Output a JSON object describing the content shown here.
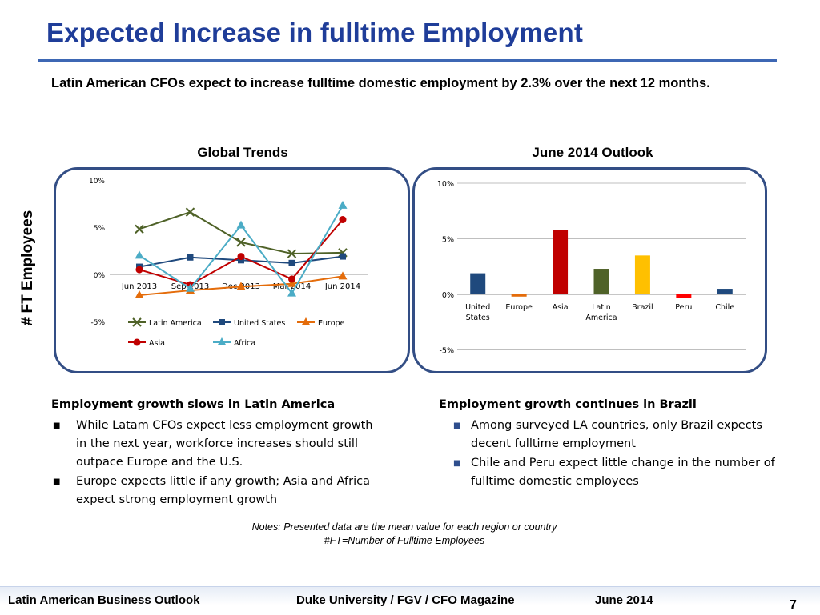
{
  "slide": {
    "title": "Expected Increase in fulltime Employment",
    "intro": "Latin American CFOs expect to increase fulltime domestic employment by 2.3% over the next 12 months.",
    "vertical_label": "# FT Employees",
    "left_panel_title": "Global Trends",
    "right_panel_title": "June 2014 Outlook"
  },
  "left_text": {
    "heading": "Employment growth slows in Latin America",
    "bullets": [
      "While Latam CFOs expect less employment growth in the next year, workforce increases should still outpace Europe and the U.S.",
      "Europe expects little if any growth; Asia and Africa expect strong employment growth"
    ]
  },
  "right_text": {
    "heading": "Employment growth continues in Brazil",
    "bullets": [
      "Among surveyed LA countries, only Brazil expects decent fulltime employment",
      "Chile and Peru expect little change in the number of fulltime domestic employees"
    ]
  },
  "notes": {
    "line1": "Notes: Presented data are the mean value for each region or country",
    "line2": "#FT=Number of Fulltime Employees"
  },
  "footer": {
    "left": "Latin American Business Outlook",
    "center": "Duke University / FGV / CFO Magazine",
    "date": "June 2014",
    "page": "7"
  },
  "chart_data": [
    {
      "type": "line",
      "title": "Global Trends",
      "ylabel": "# FT Employees",
      "x": [
        "Jun 2013",
        "Sep 2013",
        "Dec 2013",
        "Mar 2014",
        "Jun 2014"
      ],
      "yticks": [
        "10%",
        "5%",
        "0%",
        "-5%"
      ],
      "ylim": [
        -5,
        10
      ],
      "legend_position": "bottom",
      "series": [
        {
          "name": "Latin America",
          "values": [
            4.8,
            6.6,
            3.4,
            2.2,
            2.3
          ],
          "color": "#4f6228",
          "marker": "x"
        },
        {
          "name": "United States",
          "values": [
            0.8,
            1.8,
            1.5,
            1.2,
            1.9
          ],
          "color": "#1f497d",
          "marker": "square"
        },
        {
          "name": "Europe",
          "values": [
            -2.2,
            -1.7,
            -1.3,
            -1.0,
            -0.2
          ],
          "color": "#e46c0a",
          "marker": "triangle"
        },
        {
          "name": "Asia",
          "values": [
            0.5,
            -1.1,
            1.9,
            -0.5,
            5.8
          ],
          "color": "#c00000",
          "marker": "circle"
        },
        {
          "name": "Africa",
          "values": [
            2.0,
            -1.5,
            5.2,
            -2.0,
            7.3
          ],
          "color": "#4bacc6",
          "marker": "triangle"
        }
      ]
    },
    {
      "type": "bar",
      "title": "June 2014 Outlook",
      "categories": [
        "United States",
        "Europe",
        "Asia",
        "Latin America",
        "Brazil",
        "Peru",
        "Chile"
      ],
      "values": [
        1.9,
        -0.2,
        5.8,
        2.3,
        3.5,
        -0.3,
        0.5
      ],
      "colors": [
        "#1f497d",
        "#e46c0a",
        "#c00000",
        "#4f6228",
        "#ffc000",
        "#ff0000",
        "#1f497d"
      ],
      "yticks": [
        "10%",
        "5%",
        "0%",
        "-5%"
      ],
      "ylim": [
        -5,
        10
      ],
      "grid": true
    }
  ]
}
